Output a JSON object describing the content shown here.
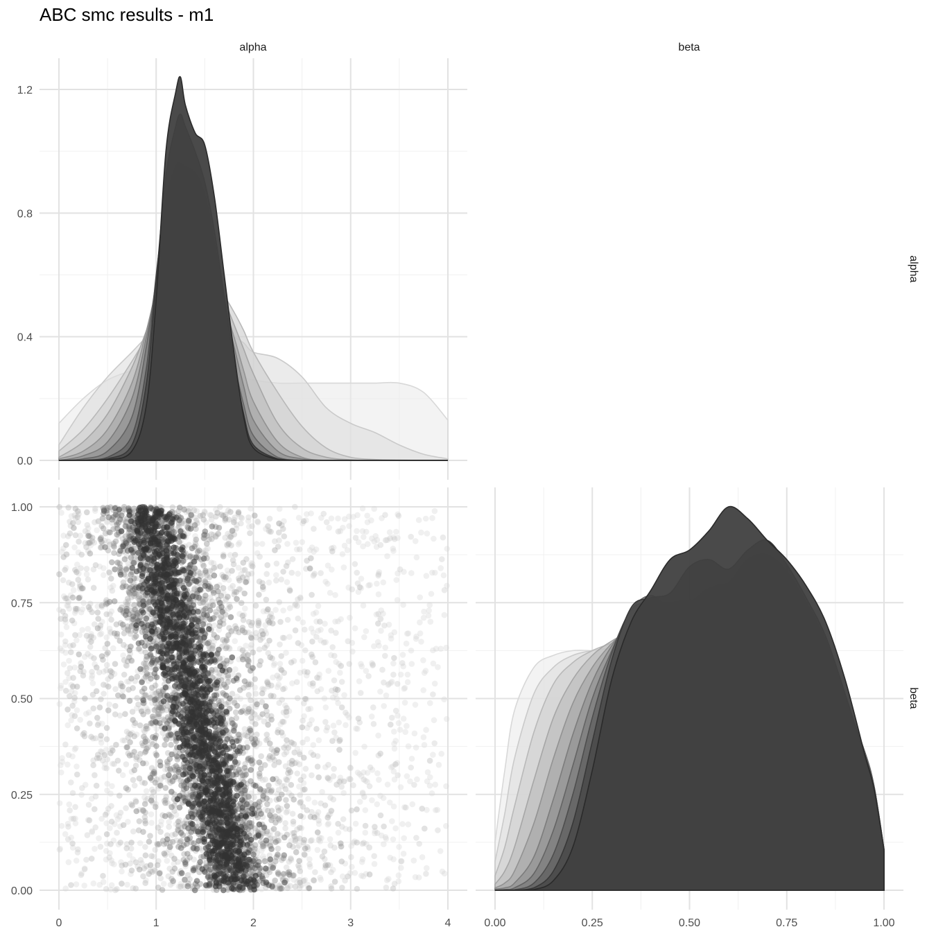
{
  "chart_data": {
    "type": "pairs",
    "title": "ABC smc results - m1",
    "parameters": [
      "alpha",
      "beta"
    ],
    "strips": {
      "top": [
        "alpha",
        "beta"
      ],
      "right": [
        "alpha",
        "beta"
      ]
    },
    "axes": {
      "alpha": {
        "range": [
          0,
          4
        ],
        "ticks": [
          0,
          1,
          2,
          3,
          4
        ],
        "tick_labels": [
          "0",
          "1",
          "2",
          "3",
          "4"
        ]
      },
      "beta": {
        "range": [
          0,
          1
        ],
        "ticks": [
          0,
          0.25,
          0.5,
          0.75,
          1
        ],
        "tick_labels": [
          "0.00",
          "0.25",
          "0.50",
          "0.75",
          "1.00"
        ]
      },
      "alpha_density": {
        "range": [
          0,
          1.3
        ],
        "ticks": [
          0,
          0.4,
          0.8,
          1.2
        ],
        "tick_labels": [
          "0.0",
          "0.4",
          "0.8",
          "1.2"
        ]
      }
    },
    "grid": true,
    "fill_colors": [
      "#ebebeb",
      "#dedede",
      "#cfcfcf",
      "#bdbdbd",
      "#a8a8a8",
      "#939393",
      "#7d7d7d",
      "#646464",
      "#4a4a4a",
      "#404040"
    ],
    "alpha_density": {
      "x": [
        0,
        0.25,
        0.5,
        0.75,
        0.9,
        1.0,
        1.1,
        1.2,
        1.25,
        1.3,
        1.4,
        1.5,
        1.6,
        1.7,
        1.8,
        1.9,
        2.0,
        2.25,
        2.5,
        2.75,
        3.0,
        3.25,
        3.5,
        3.75,
        4.0
      ],
      "series": [
        {
          "values": [
            0.12,
            0.2,
            0.26,
            0.29,
            0.3,
            0.31,
            0.32,
            0.33,
            0.33,
            0.33,
            0.33,
            0.32,
            0.31,
            0.3,
            0.29,
            0.27,
            0.26,
            0.25,
            0.25,
            0.25,
            0.25,
            0.25,
            0.25,
            0.22,
            0.13
          ]
        },
        {
          "values": [
            0.05,
            0.17,
            0.27,
            0.35,
            0.4,
            0.43,
            0.45,
            0.46,
            0.46,
            0.46,
            0.45,
            0.44,
            0.43,
            0.42,
            0.4,
            0.38,
            0.35,
            0.33,
            0.27,
            0.17,
            0.12,
            0.09,
            0.05,
            0.02,
            0.005
          ]
        },
        {
          "values": [
            0.03,
            0.1,
            0.2,
            0.32,
            0.4,
            0.45,
            0.49,
            0.52,
            0.53,
            0.54,
            0.55,
            0.56,
            0.55,
            0.53,
            0.48,
            0.42,
            0.35,
            0.22,
            0.11,
            0.04,
            0.01,
            0.003,
            0.001,
            0,
            0
          ]
        },
        {
          "values": [
            0.01,
            0.06,
            0.15,
            0.3,
            0.42,
            0.5,
            0.56,
            0.6,
            0.62,
            0.63,
            0.64,
            0.65,
            0.6,
            0.52,
            0.44,
            0.36,
            0.28,
            0.12,
            0.04,
            0.01,
            0.002,
            0,
            0,
            0,
            0
          ]
        },
        {
          "values": [
            0.005,
            0.03,
            0.1,
            0.25,
            0.42,
            0.55,
            0.65,
            0.72,
            0.74,
            0.75,
            0.73,
            0.67,
            0.6,
            0.5,
            0.4,
            0.29,
            0.19,
            0.06,
            0.01,
            0,
            0,
            0,
            0,
            0,
            0
          ]
        },
        {
          "values": [
            0,
            0.015,
            0.06,
            0.2,
            0.4,
            0.55,
            0.68,
            0.76,
            0.78,
            0.79,
            0.78,
            0.72,
            0.62,
            0.5,
            0.37,
            0.24,
            0.13,
            0.03,
            0.005,
            0,
            0,
            0,
            0,
            0,
            0
          ]
        },
        {
          "values": [
            0,
            0.005,
            0.03,
            0.14,
            0.37,
            0.58,
            0.74,
            0.84,
            0.87,
            0.89,
            0.87,
            0.79,
            0.66,
            0.5,
            0.32,
            0.18,
            0.08,
            0.01,
            0,
            0,
            0,
            0,
            0,
            0,
            0
          ]
        },
        {
          "values": [
            0,
            0.001,
            0.01,
            0.08,
            0.3,
            0.6,
            0.84,
            0.95,
            0.96,
            0.95,
            0.93,
            0.86,
            0.7,
            0.5,
            0.3,
            0.14,
            0.05,
            0.005,
            0,
            0,
            0,
            0,
            0,
            0,
            0
          ]
        },
        {
          "values": [
            0,
            0,
            0.005,
            0.05,
            0.25,
            0.58,
            0.92,
            1.08,
            1.12,
            1.08,
            1.0,
            0.9,
            0.74,
            0.53,
            0.32,
            0.15,
            0.05,
            0.005,
            0,
            0,
            0,
            0,
            0,
            0,
            0
          ]
        },
        {
          "values": [
            0,
            0,
            0.002,
            0.03,
            0.18,
            0.52,
            1.0,
            1.19,
            1.24,
            1.15,
            1.06,
            1.02,
            0.85,
            0.6,
            0.35,
            0.14,
            0.04,
            0.003,
            0,
            0,
            0,
            0,
            0,
            0,
            0
          ]
        }
      ]
    },
    "beta_density": {
      "x": [
        0,
        0.025,
        0.05,
        0.1,
        0.15,
        0.2,
        0.25,
        0.3,
        0.35,
        0.4,
        0.45,
        0.5,
        0.55,
        0.6,
        0.65,
        0.7,
        0.75,
        0.8,
        0.85,
        0.9,
        0.95,
        0.975,
        1.0
      ],
      "series": [
        {
          "values": [
            0.2,
            0.5,
            0.75,
            0.93,
            0.98,
            1.0,
            1.0,
            1.0,
            1.0,
            1.0,
            1.0,
            1.0,
            1.0,
            1.0,
            1.0,
            1.0,
            0.98,
            0.94,
            0.88,
            0.75,
            0.55,
            0.4,
            0.16
          ]
        },
        {
          "values": [
            0.12,
            0.32,
            0.55,
            0.82,
            0.93,
            0.98,
            1.0,
            1.01,
            1.01,
            1.02,
            1.02,
            1.02,
            1.02,
            1.01,
            1.0,
            0.99,
            0.97,
            0.93,
            0.86,
            0.75,
            0.57,
            0.42,
            0.17
          ]
        },
        {
          "values": [
            0.06,
            0.18,
            0.35,
            0.66,
            0.86,
            0.95,
            1.0,
            1.03,
            1.05,
            1.06,
            1.07,
            1.08,
            1.08,
            1.08,
            1.07,
            1.05,
            1.02,
            0.97,
            0.89,
            0.76,
            0.57,
            0.42,
            0.17
          ]
        },
        {
          "values": [
            0.025,
            0.08,
            0.18,
            0.46,
            0.72,
            0.88,
            0.98,
            1.04,
            1.08,
            1.1,
            1.11,
            1.12,
            1.12,
            1.12,
            1.11,
            1.1,
            1.07,
            1.02,
            0.92,
            0.77,
            0.58,
            0.43,
            0.17
          ]
        },
        {
          "values": [
            0.01,
            0.03,
            0.08,
            0.28,
            0.55,
            0.78,
            0.93,
            1.03,
            1.1,
            1.14,
            1.16,
            1.17,
            1.18,
            1.19,
            1.2,
            1.2,
            1.17,
            1.1,
            0.97,
            0.79,
            0.58,
            0.43,
            0.17
          ]
        },
        {
          "values": [
            0.005,
            0.01,
            0.03,
            0.14,
            0.38,
            0.65,
            0.87,
            1.02,
            1.12,
            1.18,
            1.2,
            1.21,
            1.22,
            1.25,
            1.28,
            1.28,
            1.22,
            1.12,
            0.98,
            0.79,
            0.58,
            0.43,
            0.17
          ]
        },
        {
          "values": [
            0,
            0.003,
            0.01,
            0.07,
            0.25,
            0.52,
            0.8,
            1.0,
            1.17,
            1.23,
            1.18,
            1.2,
            1.26,
            1.28,
            1.28,
            1.28,
            1.22,
            1.13,
            1.0,
            0.8,
            0.58,
            0.43,
            0.17
          ]
        },
        {
          "values": [
            0,
            0,
            0.002,
            0.03,
            0.15,
            0.4,
            0.72,
            0.99,
            1.17,
            1.2,
            1.19,
            1.2,
            1.22,
            1.28,
            1.38,
            1.4,
            1.33,
            1.2,
            1.04,
            0.8,
            0.57,
            0.42,
            0.16
          ]
        },
        {
          "values": [
            0,
            0,
            0,
            0.01,
            0.08,
            0.28,
            0.62,
            0.96,
            1.18,
            1.22,
            1.24,
            1.35,
            1.38,
            1.34,
            1.42,
            1.46,
            1.36,
            1.22,
            1.06,
            0.82,
            0.56,
            0.41,
            0.16
          ]
        },
        {
          "values": [
            0,
            0,
            0,
            0.003,
            0.04,
            0.18,
            0.5,
            0.88,
            1.12,
            1.25,
            1.38,
            1.42,
            1.5,
            1.6,
            1.55,
            1.46,
            1.38,
            1.27,
            1.12,
            0.88,
            0.57,
            0.42,
            0.17
          ]
        }
      ]
    },
    "scatter": {
      "x_param": "alpha",
      "y_param": "beta",
      "description_generations": 10,
      "point_color": "#3a3a3a"
    }
  }
}
